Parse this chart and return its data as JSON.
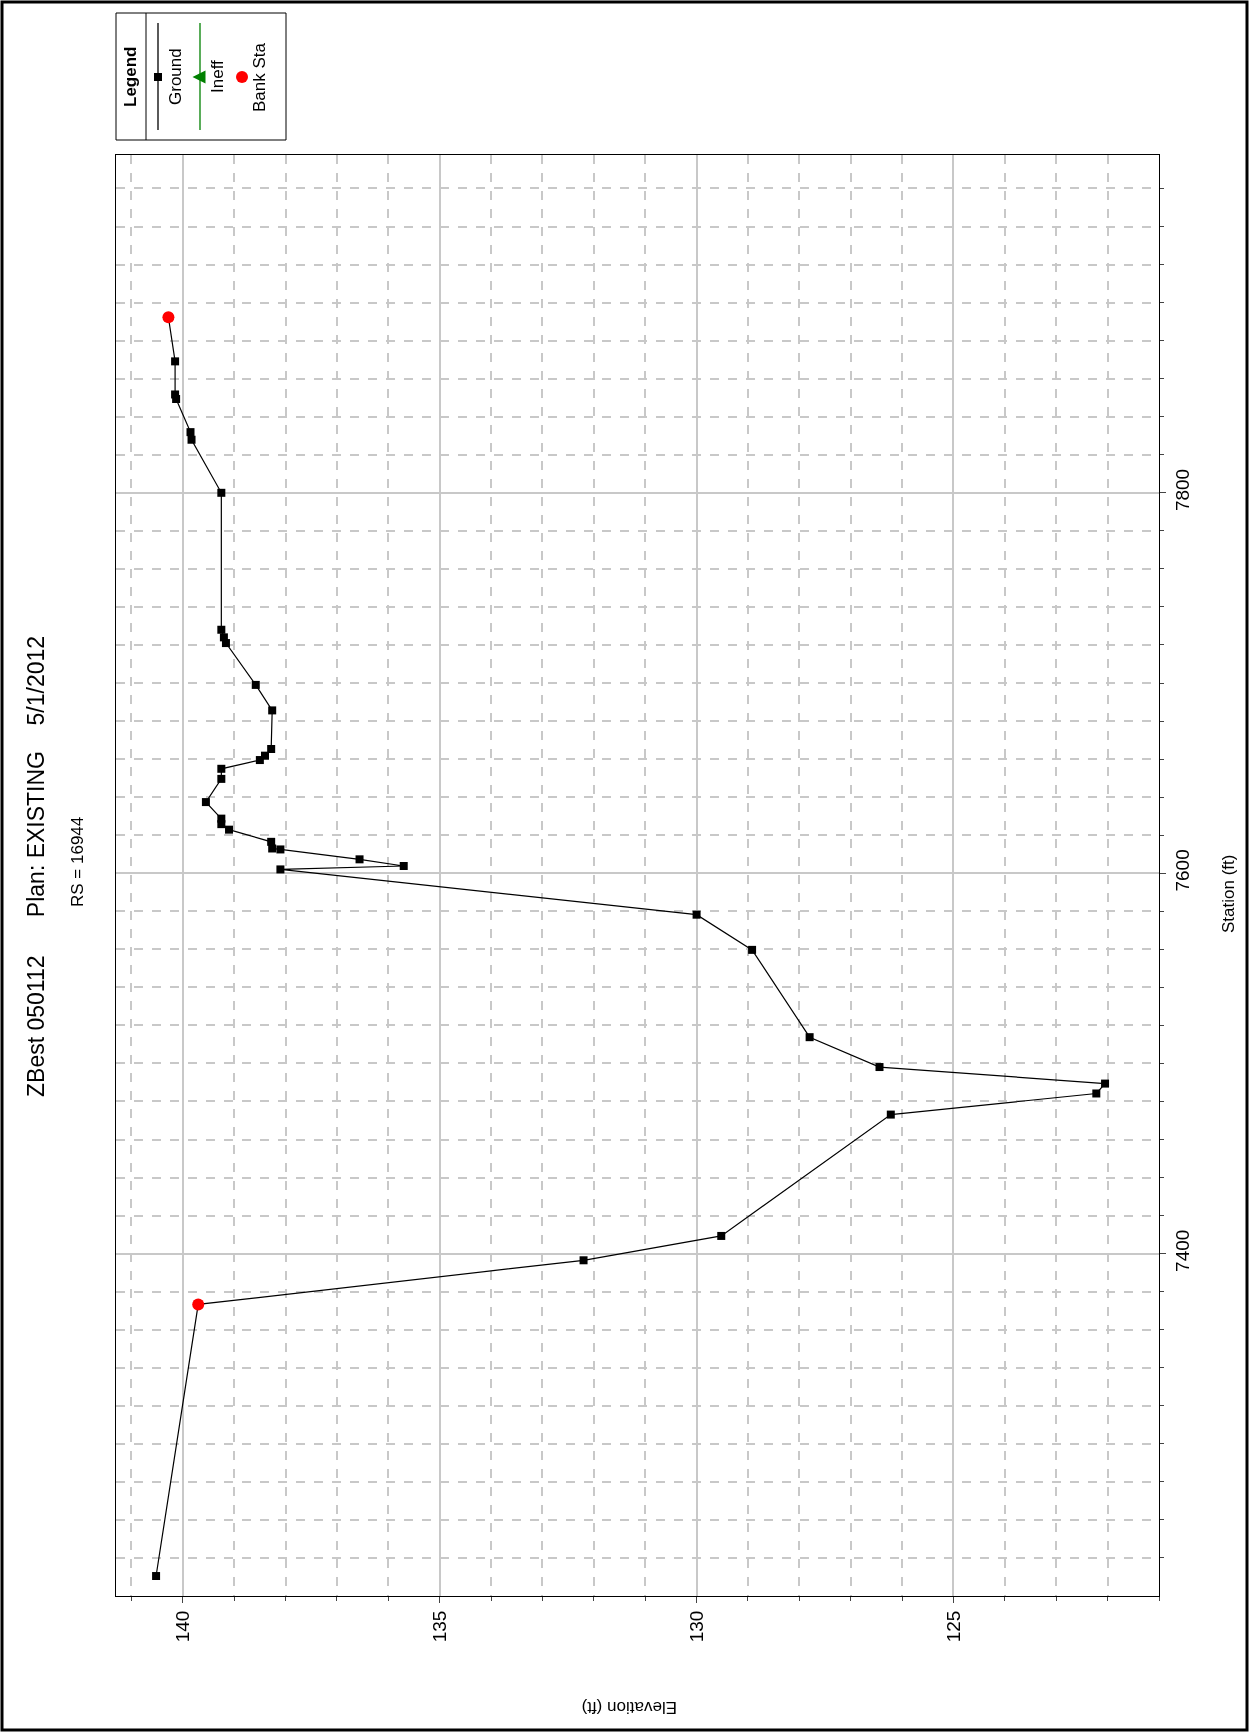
{
  "chart_data": {
    "type": "line",
    "title": "ZBest 050112      Plan: EXISTING    5/1/2012",
    "subtitle": "RS = 16944",
    "xlabel": "Elevation (ft)",
    "ylabel": "Station (ft)",
    "legend_title": "Legend",
    "legend": "top left",
    "grid": true,
    "xlim": [
      141.3,
      121.0
    ],
    "ylim": [
      7220,
      7977.6
    ],
    "yticks": [
      {
        "value": 7240,
        "label": null
      },
      {
        "value": 7260,
        "label": null
      },
      {
        "value": 7280,
        "label": null
      },
      {
        "value": 7300,
        "label": null
      },
      {
        "value": 7320,
        "label": null
      },
      {
        "value": 7340,
        "label": null
      },
      {
        "value": 7360,
        "label": null
      },
      {
        "value": 7380,
        "label": null
      },
      7400,
      {
        "value": 7420,
        "label": null
      },
      {
        "value": 7440,
        "label": null
      },
      {
        "value": 7460,
        "label": null
      },
      {
        "value": 7480,
        "label": null
      },
      {
        "value": 7500,
        "label": null
      },
      {
        "value": 7520,
        "label": null
      },
      {
        "value": 7540,
        "label": null
      },
      {
        "value": 7560,
        "label": null
      },
      {
        "value": 7580,
        "label": null
      },
      7600,
      {
        "value": 7620,
        "label": null
      },
      {
        "value": 7640,
        "label": null
      },
      {
        "value": 7660,
        "label": null
      },
      {
        "value": 7680,
        "label": null
      },
      {
        "value": 7700,
        "label": null
      },
      {
        "value": 7720,
        "label": null
      },
      {
        "value": 7740,
        "label": null
      },
      {
        "value": 7760,
        "label": null
      },
      {
        "value": 7780,
        "label": null
      },
      7800,
      {
        "value": 7820,
        "label": null
      },
      {
        "value": 7840,
        "label": null
      },
      {
        "value": 7860,
        "label": null
      },
      {
        "value": 7880,
        "label": null
      },
      {
        "value": 7900,
        "label": null
      },
      {
        "value": 7920,
        "label": null
      },
      {
        "value": 7940,
        "label": null
      },
      {
        "value": 7960,
        "label": null
      }
    ],
    "xticks": [
      {
        "value": 141,
        "label": null
      },
      140,
      {
        "value": 139,
        "label": null
      },
      {
        "value": 138,
        "label": null
      },
      {
        "value": 137,
        "label": null
      },
      {
        "value": 136,
        "label": null
      },
      135,
      {
        "value": 134,
        "label": null
      },
      {
        "value": 133,
        "label": null
      },
      {
        "value": 132,
        "label": null
      },
      {
        "value": 131,
        "label": null
      },
      130,
      {
        "value": 129,
        "label": null
      },
      {
        "value": 128,
        "label": null
      },
      {
        "value": 127,
        "label": null
      },
      {
        "value": 126,
        "label": null
      },
      125,
      {
        "value": 124,
        "label": null
      },
      {
        "value": 123,
        "label": null
      },
      {
        "value": 122,
        "label": null
      },
      {
        "value": 121,
        "label": null
      }
    ],
    "series": [
      {
        "name": "Ground",
        "color": "#000000",
        "marker": "square",
        "line_style": "solid",
        "values": [
          7230.5,
          7373.3,
          7396.5,
          7409.3,
          7473.1,
          7484.2,
          7489.4,
          7498.1,
          7513.8,
          7559.7,
          7578.2,
          7602.0,
          7603.8,
          7607.3,
          7612.5,
          7613.0,
          7616.5,
          7622.9,
          7625.8,
          7628.7,
          7637.4,
          7649.6,
          7654.9,
          7659.5,
          7661.8,
          7665.3,
          7685.6,
          7699.0,
          7721.0,
          7724.0,
          7728.0,
          7800.0,
          7827.9,
          7831.9,
          7849.3,
          7851.7,
          7869.1,
          7892.3
        ],
        "x": [
          140.52,
          139.7,
          132.2,
          129.52,
          126.22,
          122.22,
          122.05,
          126.44,
          127.8,
          128.92,
          130.0,
          138.1,
          135.7,
          136.56,
          138.1,
          138.26,
          138.28,
          139.1,
          139.25,
          139.25,
          139.55,
          139.25,
          139.25,
          138.5,
          138.4,
          138.28,
          138.26,
          138.58,
          139.16,
          139.2,
          139.25,
          139.25,
          139.83,
          139.85,
          140.13,
          140.15,
          140.15,
          140.28
        ]
      },
      {
        "name": "Ineff",
        "color": "#008000",
        "marker": "triangle",
        "line_style": "solid"
      },
      {
        "name": "Bank Sta",
        "type": "scatter",
        "color": "#ff0000",
        "marker": "circle",
        "values": [
          7373.3,
          7892.3
        ],
        "x": [
          139.7,
          140.28
        ]
      }
    ]
  }
}
